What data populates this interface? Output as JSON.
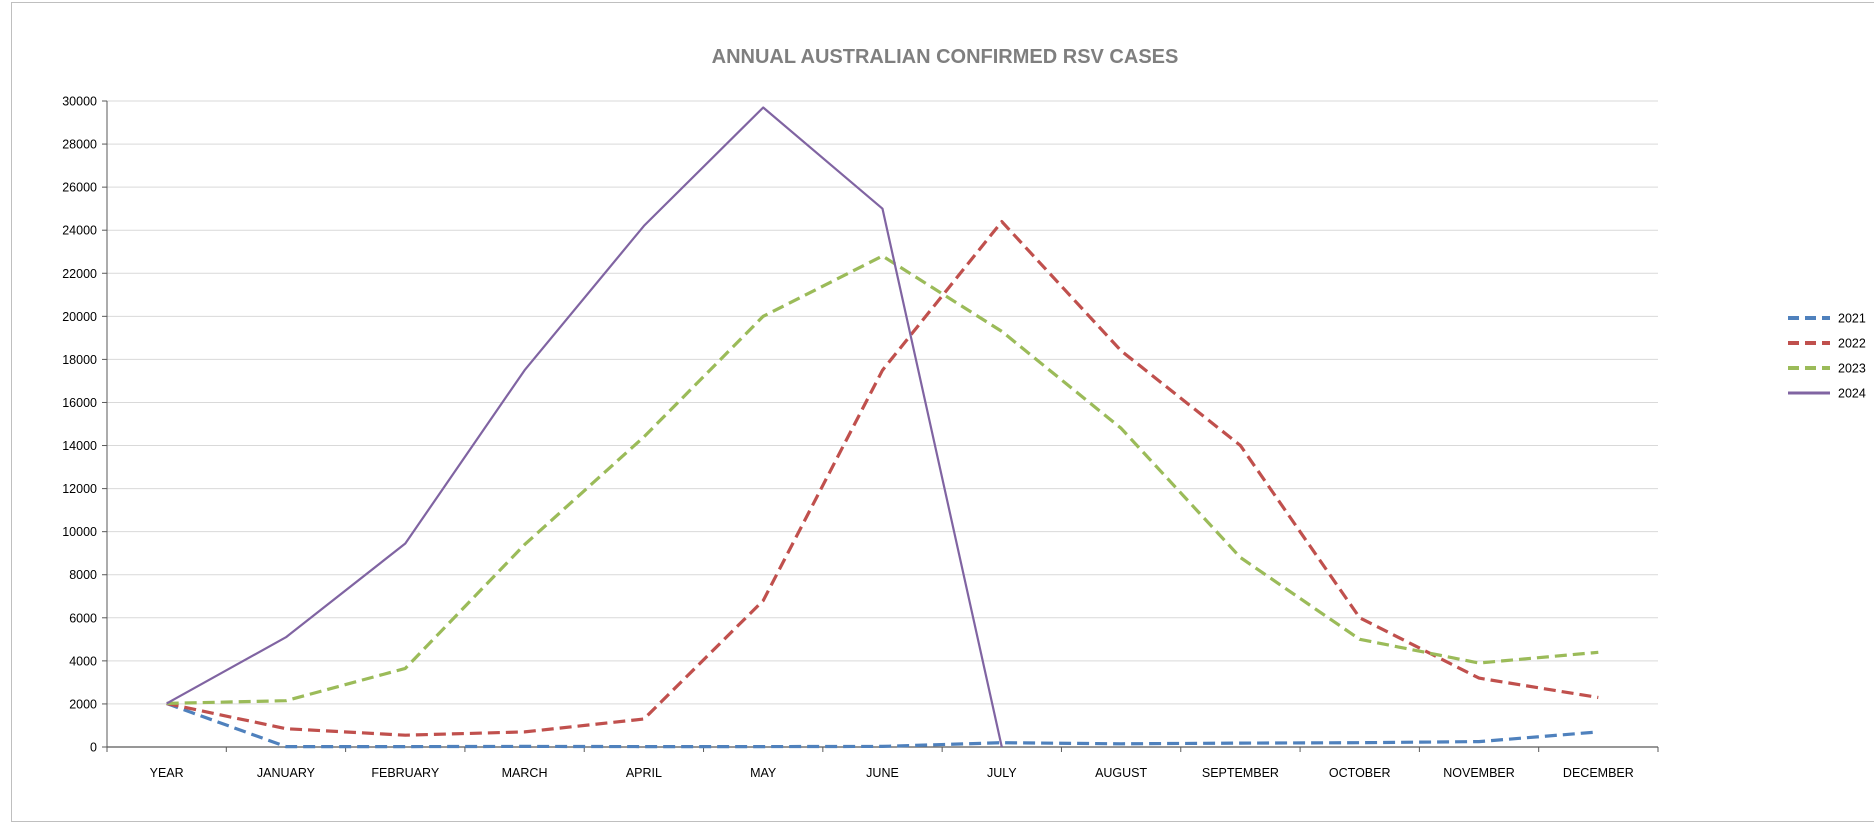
{
  "chart_data": {
    "type": "line",
    "title": "ANNUAL AUSTRALIAN CONFIRMED RSV CASES",
    "xlabel": "",
    "ylabel": "",
    "categories": [
      "YEAR",
      "JANUARY",
      "FEBRUARY",
      "MARCH",
      "APRIL",
      "MAY",
      "JUNE",
      "JULY",
      "AUGUST",
      "SEPTEMBER",
      "OCTOBER",
      "NOVEMBER",
      "DECEMBER"
    ],
    "ylim": [
      0,
      30000
    ],
    "yticks": [
      0,
      2000,
      4000,
      6000,
      8000,
      10000,
      12000,
      14000,
      16000,
      18000,
      20000,
      22000,
      24000,
      26000,
      28000,
      30000
    ],
    "grid": true,
    "legend_position": "right",
    "series": [
      {
        "name": "2021",
        "color": "#4f81bd",
        "style": "dashed",
        "values": [
          2021,
          20,
          20,
          30,
          20,
          20,
          30,
          200,
          150,
          180,
          200,
          250,
          700
        ]
      },
      {
        "name": "2022",
        "color": "#c0504d",
        "style": "dashed",
        "values": [
          2022,
          850,
          550,
          700,
          1300,
          6800,
          17500,
          24400,
          18400,
          14000,
          6000,
          3200,
          2300
        ]
      },
      {
        "name": "2023",
        "color": "#9bbb59",
        "style": "dashed",
        "values": [
          2023,
          2150,
          3650,
          9400,
          14400,
          20000,
          22800,
          19300,
          14800,
          8800,
          5000,
          3900,
          4400
        ]
      },
      {
        "name": "2024",
        "color": "#8064a2",
        "style": "solid",
        "values": [
          2024,
          5100,
          9450,
          17500,
          24200,
          29700,
          25000,
          0,
          null,
          null,
          null,
          null,
          null
        ]
      }
    ]
  }
}
